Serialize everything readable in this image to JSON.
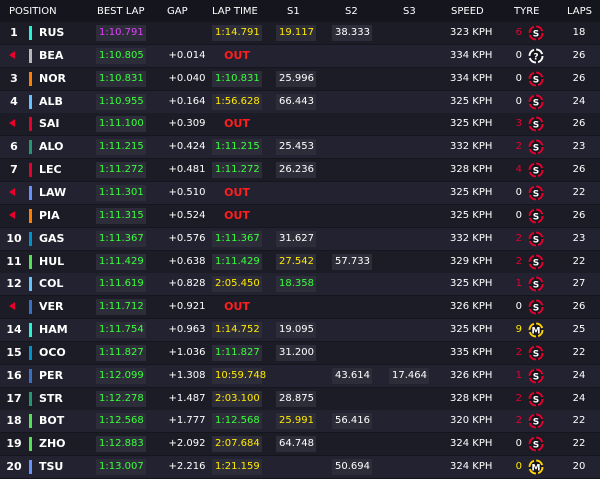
{
  "headers": {
    "position": "POSITION",
    "best_lap": "BEST LAP",
    "gap": "GAP",
    "lap_time": "LAP TIME",
    "s1": "S1",
    "s2": "S2",
    "s3": "S3",
    "speed": "SPEED",
    "tyre": "TYRE",
    "laps": "LAPS"
  },
  "colors": {
    "purple": "#e040fb",
    "green": "#39ff3c",
    "yellow": "#ffea00",
    "out": "#ff1e1e",
    "soft": "#e8002d",
    "medium": "#ffd400",
    "unknown": "#ffffff"
  },
  "rows": [
    {
      "pos": "1",
      "arrow": false,
      "driver": "RUS",
      "team_color": "#27f4d2",
      "best": "1:10.791",
      "best_c": "purple",
      "gap": "",
      "lap": "1:14.791",
      "lap_c": "yellow",
      "out": "",
      "s1": "19.117",
      "s1_c": "yellow",
      "s2": "38.333",
      "s2_c": "white",
      "s3": "",
      "s3_c": "white",
      "speed": "323 KPH",
      "tyre_count": "6",
      "tyre_count_c": "red",
      "tyre": "S",
      "laps": "18"
    },
    {
      "pos": "",
      "arrow": true,
      "driver": "BEA",
      "team_color": "#b6babd",
      "best": "1:10.805",
      "best_c": "green",
      "gap": "+0.014",
      "lap": "",
      "lap_c": "white",
      "out": "OUT",
      "s1": "",
      "s1_c": "white",
      "s2": "",
      "s2_c": "white",
      "s3": "",
      "s3_c": "white",
      "speed": "334 KPH",
      "tyre_count": "0",
      "tyre_count_c": "white",
      "tyre": "?",
      "laps": "26"
    },
    {
      "pos": "3",
      "arrow": false,
      "driver": "NOR",
      "team_color": "#ff8000",
      "best": "1:10.831",
      "best_c": "green",
      "gap": "+0.040",
      "lap": "1:10.831",
      "lap_c": "green",
      "out": "",
      "s1": "25.996",
      "s1_c": "white",
      "s2": "",
      "s2_c": "white",
      "s3": "",
      "s3_c": "white",
      "speed": "334 KPH",
      "tyre_count": "0",
      "tyre_count_c": "white",
      "tyre": "S",
      "laps": "26"
    },
    {
      "pos": "4",
      "arrow": false,
      "driver": "ALB",
      "team_color": "#64c4ff",
      "best": "1:10.955",
      "best_c": "green",
      "gap": "+0.164",
      "lap": "1:56.628",
      "lap_c": "yellow",
      "out": "",
      "s1": "66.443",
      "s1_c": "white",
      "s2": "",
      "s2_c": "white",
      "s3": "",
      "s3_c": "white",
      "speed": "325 KPH",
      "tyre_count": "0",
      "tyre_count_c": "white",
      "tyre": "S",
      "laps": "24"
    },
    {
      "pos": "",
      "arrow": true,
      "driver": "SAI",
      "team_color": "#e8002d",
      "best": "1:11.100",
      "best_c": "green",
      "gap": "+0.309",
      "lap": "",
      "lap_c": "white",
      "out": "OUT",
      "s1": "",
      "s1_c": "white",
      "s2": "",
      "s2_c": "white",
      "s3": "",
      "s3_c": "white",
      "speed": "325 KPH",
      "tyre_count": "3",
      "tyre_count_c": "red",
      "tyre": "S",
      "laps": "26"
    },
    {
      "pos": "6",
      "arrow": false,
      "driver": "ALO",
      "team_color": "#229971",
      "best": "1:11.215",
      "best_c": "green",
      "gap": "+0.424",
      "lap": "1:11.215",
      "lap_c": "green",
      "out": "",
      "s1": "25.453",
      "s1_c": "white",
      "s2": "",
      "s2_c": "white",
      "s3": "",
      "s3_c": "white",
      "speed": "332 KPH",
      "tyre_count": "2",
      "tyre_count_c": "red",
      "tyre": "S",
      "laps": "23"
    },
    {
      "pos": "7",
      "arrow": false,
      "driver": "LEC",
      "team_color": "#e8002d",
      "best": "1:11.272",
      "best_c": "green",
      "gap": "+0.481",
      "lap": "1:11.272",
      "lap_c": "green",
      "out": "",
      "s1": "26.236",
      "s1_c": "white",
      "s2": "",
      "s2_c": "white",
      "s3": "",
      "s3_c": "white",
      "speed": "328 KPH",
      "tyre_count": "4",
      "tyre_count_c": "red",
      "tyre": "S",
      "laps": "26"
    },
    {
      "pos": "",
      "arrow": true,
      "driver": "LAW",
      "team_color": "#6692ff",
      "best": "1:11.301",
      "best_c": "green",
      "gap": "+0.510",
      "lap": "",
      "lap_c": "white",
      "out": "OUT",
      "s1": "",
      "s1_c": "white",
      "s2": "",
      "s2_c": "white",
      "s3": "",
      "s3_c": "white",
      "speed": "325 KPH",
      "tyre_count": "0",
      "tyre_count_c": "white",
      "tyre": "S",
      "laps": "22"
    },
    {
      "pos": "",
      "arrow": true,
      "driver": "PIA",
      "team_color": "#ff8000",
      "best": "1:11.315",
      "best_c": "green",
      "gap": "+0.524",
      "lap": "",
      "lap_c": "white",
      "out": "OUT",
      "s1": "",
      "s1_c": "white",
      "s2": "",
      "s2_c": "white",
      "s3": "",
      "s3_c": "white",
      "speed": "325 KPH",
      "tyre_count": "0",
      "tyre_count_c": "white",
      "tyre": "S",
      "laps": "26"
    },
    {
      "pos": "10",
      "arrow": false,
      "driver": "GAS",
      "team_color": "#0093cc",
      "best": "1:11.367",
      "best_c": "green",
      "gap": "+0.576",
      "lap": "1:11.367",
      "lap_c": "green",
      "out": "",
      "s1": "31.627",
      "s1_c": "white",
      "s2": "",
      "s2_c": "white",
      "s3": "",
      "s3_c": "white",
      "speed": "332 KPH",
      "tyre_count": "2",
      "tyre_count_c": "red",
      "tyre": "S",
      "laps": "23"
    },
    {
      "pos": "11",
      "arrow": false,
      "driver": "HUL",
      "team_color": "#52e252",
      "best": "1:11.429",
      "best_c": "green",
      "gap": "+0.638",
      "lap": "1:11.429",
      "lap_c": "green",
      "out": "",
      "s1": "27.542",
      "s1_c": "yellow",
      "s2": "57.733",
      "s2_c": "white",
      "s3": "",
      "s3_c": "white",
      "speed": "329 KPH",
      "tyre_count": "2",
      "tyre_count_c": "red",
      "tyre": "S",
      "laps": "22"
    },
    {
      "pos": "12",
      "arrow": false,
      "driver": "COL",
      "team_color": "#64c4ff",
      "best": "1:11.619",
      "best_c": "green",
      "gap": "+0.828",
      "lap": "2:05.450",
      "lap_c": "yellow",
      "out": "",
      "s1": "18.358",
      "s1_c": "green",
      "s2": "",
      "s2_c": "white",
      "s3": "",
      "s3_c": "white",
      "speed": "325 KPH",
      "tyre_count": "1",
      "tyre_count_c": "red",
      "tyre": "S",
      "laps": "27"
    },
    {
      "pos": "",
      "arrow": true,
      "driver": "VER",
      "team_color": "#3671c6",
      "best": "1:11.712",
      "best_c": "green",
      "gap": "+0.921",
      "lap": "",
      "lap_c": "white",
      "out": "OUT",
      "s1": "",
      "s1_c": "white",
      "s2": "",
      "s2_c": "white",
      "s3": "",
      "s3_c": "white",
      "speed": "326 KPH",
      "tyre_count": "0",
      "tyre_count_c": "white",
      "tyre": "S",
      "laps": "26"
    },
    {
      "pos": "14",
      "arrow": false,
      "driver": "HAM",
      "team_color": "#27f4d2",
      "best": "1:11.754",
      "best_c": "green",
      "gap": "+0.963",
      "lap": "1:14.752",
      "lap_c": "yellow",
      "out": "",
      "s1": "19.095",
      "s1_c": "white",
      "s2": "",
      "s2_c": "white",
      "s3": "",
      "s3_c": "white",
      "speed": "325 KPH",
      "tyre_count": "9",
      "tyre_count_c": "yellow",
      "tyre": "M",
      "laps": "25"
    },
    {
      "pos": "15",
      "arrow": false,
      "driver": "OCO",
      "team_color": "#0093cc",
      "best": "1:11.827",
      "best_c": "green",
      "gap": "+1.036",
      "lap": "1:11.827",
      "lap_c": "green",
      "out": "",
      "s1": "31.200",
      "s1_c": "white",
      "s2": "",
      "s2_c": "white",
      "s3": "",
      "s3_c": "white",
      "speed": "335 KPH",
      "tyre_count": "2",
      "tyre_count_c": "red",
      "tyre": "S",
      "laps": "22"
    },
    {
      "pos": "16",
      "arrow": false,
      "driver": "PER",
      "team_color": "#3671c6",
      "best": "1:12.099",
      "best_c": "green",
      "gap": "+1.308",
      "lap": "10:59.748",
      "lap_c": "yellow",
      "out": "",
      "s1": "",
      "s1_c": "white",
      "s2": "43.614",
      "s2_c": "white",
      "s3": "17.464",
      "s3_c": "white",
      "speed": "326 KPH",
      "tyre_count": "1",
      "tyre_count_c": "red",
      "tyre": "S",
      "laps": "24"
    },
    {
      "pos": "17",
      "arrow": false,
      "driver": "STR",
      "team_color": "#229971",
      "best": "1:12.278",
      "best_c": "green",
      "gap": "+1.487",
      "lap": "2:03.100",
      "lap_c": "yellow",
      "out": "",
      "s1": "28.875",
      "s1_c": "white",
      "s2": "",
      "s2_c": "white",
      "s3": "",
      "s3_c": "white",
      "speed": "328 KPH",
      "tyre_count": "2",
      "tyre_count_c": "red",
      "tyre": "S",
      "laps": "24"
    },
    {
      "pos": "18",
      "arrow": false,
      "driver": "BOT",
      "team_color": "#52e252",
      "best": "1:12.568",
      "best_c": "green",
      "gap": "+1.777",
      "lap": "1:12.568",
      "lap_c": "green",
      "out": "",
      "s1": "25.991",
      "s1_c": "yellow",
      "s2": "56.416",
      "s2_c": "white",
      "s3": "",
      "s3_c": "white",
      "speed": "320 KPH",
      "tyre_count": "2",
      "tyre_count_c": "red",
      "tyre": "S",
      "laps": "22"
    },
    {
      "pos": "19",
      "arrow": false,
      "driver": "ZHO",
      "team_color": "#52e252",
      "best": "1:12.883",
      "best_c": "green",
      "gap": "+2.092",
      "lap": "2:07.684",
      "lap_c": "yellow",
      "out": "",
      "s1": "64.748",
      "s1_c": "white",
      "s2": "",
      "s2_c": "white",
      "s3": "",
      "s3_c": "white",
      "speed": "324 KPH",
      "tyre_count": "0",
      "tyre_count_c": "white",
      "tyre": "S",
      "laps": "22"
    },
    {
      "pos": "20",
      "arrow": false,
      "driver": "TSU",
      "team_color": "#6692ff",
      "best": "1:13.007",
      "best_c": "green",
      "gap": "+2.216",
      "lap": "1:21.159",
      "lap_c": "yellow",
      "out": "",
      "s1": "",
      "s1_c": "white",
      "s2": "50.694",
      "s2_c": "white",
      "s3": "",
      "s3_c": "white",
      "speed": "324 KPH",
      "tyre_count": "0",
      "tyre_count_c": "yellow",
      "tyre": "M",
      "laps": "20"
    }
  ]
}
